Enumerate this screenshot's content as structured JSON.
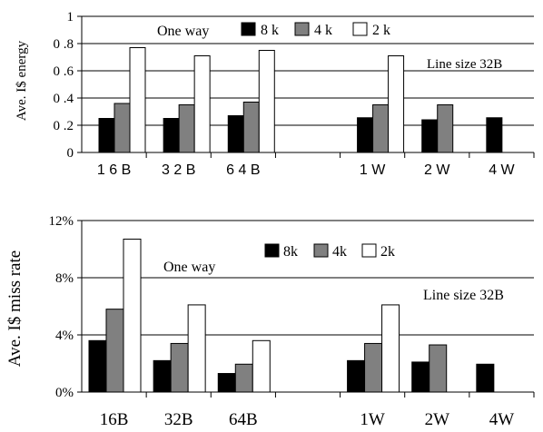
{
  "chart_data": [
    {
      "type": "bar",
      "ylabel": "Ave. I$ energy",
      "ylim": [
        0,
        1
      ],
      "yticks": [
        "0",
        "0 .2",
        "0 .4",
        "0 .6",
        "0 .8",
        "1"
      ],
      "categories": [
        "1 6 B",
        "3 2 B",
        "6 4 B",
        "",
        "1 W",
        "2 W",
        "4 W"
      ],
      "series": [
        {
          "name": "8 k",
          "color": "#000000",
          "values": [
            0.25,
            0.25,
            0.27,
            null,
            0.255,
            0.24,
            0.255
          ]
        },
        {
          "name": "4 k",
          "color": "#808080",
          "values": [
            0.36,
            0.35,
            0.37,
            null,
            0.35,
            0.35,
            null
          ]
        },
        {
          "name": "2 k",
          "color": "#ffffff",
          "values": [
            0.77,
            0.71,
            0.75,
            null,
            0.71,
            null,
            null
          ]
        }
      ],
      "annotations": [
        "One way",
        "Line size 32B"
      ],
      "legend": "top"
    },
    {
      "type": "bar",
      "ylabel": "Ave. I$ miss rate",
      "ylim": [
        0,
        12
      ],
      "yticks": [
        "0%",
        "4%",
        "8%",
        "12%"
      ],
      "categories": [
        "16B",
        "32B",
        "64B",
        "",
        "1W",
        "2W",
        "4W"
      ],
      "series": [
        {
          "name": "8k",
          "color": "#000000",
          "values": [
            3.6,
            2.2,
            1.3,
            null,
            2.2,
            2.1,
            1.95
          ]
        },
        {
          "name": "4k",
          "color": "#808080",
          "values": [
            5.8,
            3.4,
            1.95,
            null,
            3.4,
            3.3,
            null
          ]
        },
        {
          "name": "2k",
          "color": "#ffffff",
          "values": [
            10.7,
            6.1,
            3.6,
            null,
            6.1,
            null,
            null
          ]
        }
      ],
      "annotations": [
        "One way",
        "Line size 32B"
      ],
      "legend": "top"
    }
  ]
}
